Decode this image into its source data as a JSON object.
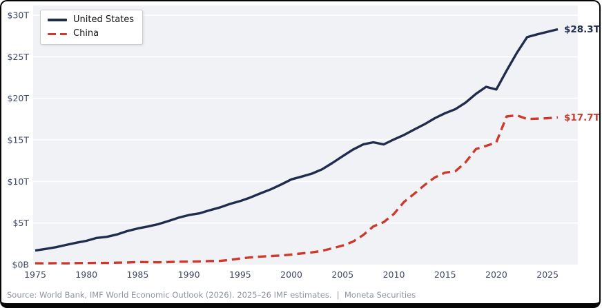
{
  "chart_data": {
    "type": "line",
    "title": "",
    "xlabel": "",
    "ylabel": "",
    "xlim": [
      1975,
      2026
    ],
    "ylim": [
      0,
      30
    ],
    "grid": true,
    "legend_position": "top-left",
    "plot_bg": "#f1f2f6",
    "grid_color": "#ffffff",
    "tick_color": "#3e4965",
    "x": [
      1975,
      1976,
      1977,
      1978,
      1979,
      1980,
      1981,
      1982,
      1983,
      1984,
      1985,
      1986,
      1987,
      1988,
      1989,
      1990,
      1991,
      1992,
      1993,
      1994,
      1995,
      1996,
      1997,
      1998,
      1999,
      2000,
      2001,
      2002,
      2003,
      2004,
      2005,
      2006,
      2007,
      2008,
      2009,
      2010,
      2011,
      2012,
      2013,
      2014,
      2015,
      2016,
      2017,
      2018,
      2019,
      2020,
      2021,
      2022,
      2023,
      2024,
      2025,
      2026
    ],
    "x_ticks": [
      {
        "value": 1975,
        "label": "1975"
      },
      {
        "value": 1980,
        "label": "1980"
      },
      {
        "value": 1985,
        "label": "1985"
      },
      {
        "value": 1990,
        "label": "1990"
      },
      {
        "value": 1995,
        "label": "1995"
      },
      {
        "value": 2000,
        "label": "2000"
      },
      {
        "value": 2005,
        "label": "2005"
      },
      {
        "value": 2010,
        "label": "2010"
      },
      {
        "value": 2015,
        "label": "2015"
      },
      {
        "value": 2020,
        "label": "2020"
      },
      {
        "value": 2025,
        "label": "2025"
      }
    ],
    "y_ticks": [
      {
        "value": 0,
        "label": "$0B"
      },
      {
        "value": 5,
        "label": "$5T"
      },
      {
        "value": 10,
        "label": "$10T"
      },
      {
        "value": 15,
        "label": "$15T"
      },
      {
        "value": 20,
        "label": "$20T"
      },
      {
        "value": 25,
        "label": "$25T"
      },
      {
        "value": 30,
        "label": "$30T"
      }
    ],
    "series": [
      {
        "name": "United States",
        "color": "#1f2c4e",
        "line_style": "solid",
        "end_label": "$28.3T",
        "values": [
          1.69,
          1.88,
          2.09,
          2.36,
          2.63,
          2.86,
          3.21,
          3.34,
          3.63,
          4.04,
          4.34,
          4.58,
          4.86,
          5.24,
          5.64,
          5.96,
          6.16,
          6.52,
          6.86,
          7.29,
          7.64,
          8.07,
          8.58,
          9.06,
          9.63,
          10.25,
          10.58,
          10.94,
          11.46,
          12.22,
          13.04,
          13.82,
          14.45,
          14.71,
          14.45,
          15.05,
          15.6,
          16.25,
          16.88,
          17.61,
          18.21,
          18.7,
          19.48,
          20.53,
          21.38,
          21.06,
          23.32,
          25.46,
          27.36,
          27.7,
          28.0,
          28.3
        ]
      },
      {
        "name": "China",
        "color": "#cc3a2d",
        "line_style": "dashed",
        "end_label": "$17.7T",
        "values": [
          0.16,
          0.15,
          0.17,
          0.15,
          0.18,
          0.19,
          0.2,
          0.2,
          0.23,
          0.26,
          0.31,
          0.3,
          0.27,
          0.31,
          0.35,
          0.36,
          0.38,
          0.43,
          0.44,
          0.56,
          0.73,
          0.86,
          0.96,
          1.03,
          1.09,
          1.21,
          1.34,
          1.47,
          1.66,
          1.96,
          2.29,
          2.75,
          3.55,
          4.59,
          5.1,
          6.09,
          7.55,
          8.53,
          9.57,
          10.48,
          11.06,
          11.23,
          12.31,
          13.89,
          14.28,
          14.69,
          17.82,
          17.96,
          17.5,
          17.55,
          17.6,
          17.7
        ]
      }
    ]
  },
  "legend": {
    "items": [
      "United States",
      "China"
    ]
  },
  "footer": {
    "source_text": "Source: World Bank, IMF World Economic Outlook (2026). 2025–26 IMF estimates.  |  Moneta Securities"
  }
}
